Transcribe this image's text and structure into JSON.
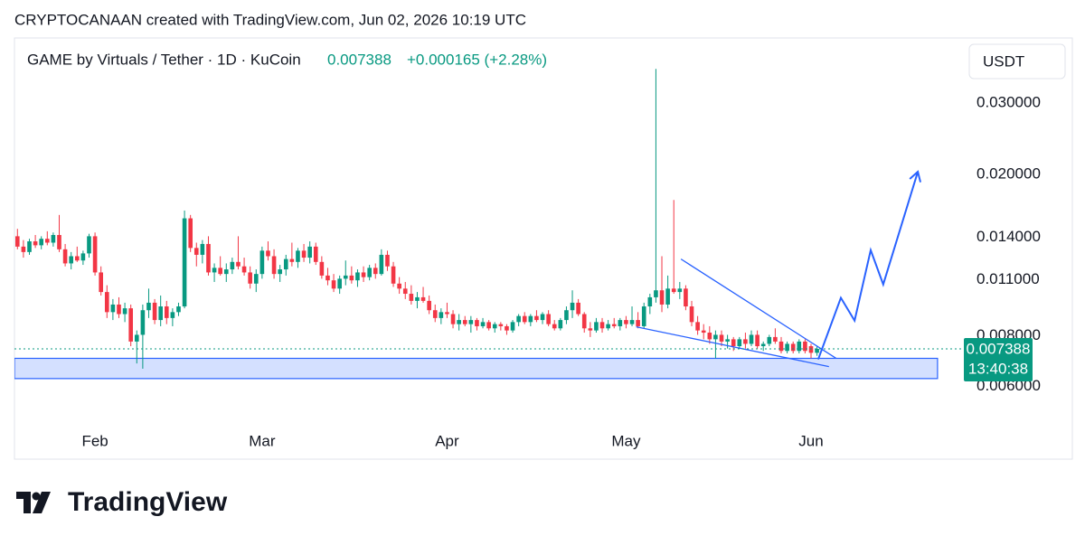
{
  "header": "CRYPTOCANAAN created with TradingView.com, Jun 02, 2026 10:19 UTC",
  "chart_data": {
    "type": "candlestick",
    "title": "GAME by Virtuals / Tether · 1D · KuCoin",
    "change": "+0.000165 (+2.28%)",
    "currency": "USDT",
    "last_price": 0.007388,
    "countdown": "13:40:38",
    "log_scale": true,
    "up_color": "#089981",
    "down_color": "#f23645",
    "drawing_color": "#2962ff",
    "xlim": [
      -0.5,
      157.7
    ],
    "ylim": [
      0.0048,
      0.0425
    ],
    "xticks": [
      {
        "value": 13,
        "label": "Feb"
      },
      {
        "value": 41,
        "label": "Mar"
      },
      {
        "value": 72,
        "label": "Apr"
      },
      {
        "value": 102,
        "label": "May"
      },
      {
        "value": 133,
        "label": "Jun"
      }
    ],
    "yticks": [
      {
        "value": 0.006,
        "label": "0.006000"
      },
      {
        "value": 0.008,
        "label": "0.008000"
      },
      {
        "value": 0.011,
        "label": "0.011000"
      },
      {
        "value": 0.014,
        "label": "0.014000"
      },
      {
        "value": 0.02,
        "label": "0.020000"
      },
      {
        "value": 0.03,
        "label": "0.030000"
      }
    ],
    "ohlc": [
      [
        0.014,
        0.0146,
        0.013,
        0.0132
      ],
      [
        0.0132,
        0.0137,
        0.0124,
        0.0128
      ],
      [
        0.0128,
        0.0138,
        0.0126,
        0.0136
      ],
      [
        0.0136,
        0.0141,
        0.0131,
        0.0133
      ],
      [
        0.0133,
        0.014,
        0.013,
        0.0138
      ],
      [
        0.0138,
        0.0144,
        0.0133,
        0.0135
      ],
      [
        0.0135,
        0.0143,
        0.0132,
        0.0141
      ],
      [
        0.0141,
        0.0158,
        0.0128,
        0.013
      ],
      [
        0.013,
        0.0134,
        0.0118,
        0.012
      ],
      [
        0.012,
        0.0128,
        0.0116,
        0.0125
      ],
      [
        0.0125,
        0.0132,
        0.0121,
        0.0122
      ],
      [
        0.0122,
        0.0129,
        0.0119,
        0.0127
      ],
      [
        0.0127,
        0.0142,
        0.0124,
        0.014
      ],
      [
        0.014,
        0.0143,
        0.0112,
        0.0114
      ],
      [
        0.0114,
        0.0118,
        0.01,
        0.0102
      ],
      [
        0.0102,
        0.0106,
        0.0088,
        0.0091
      ],
      [
        0.0091,
        0.0098,
        0.0087,
        0.0095
      ],
      [
        0.0095,
        0.0099,
        0.0088,
        0.009
      ],
      [
        0.009,
        0.0096,
        0.0086,
        0.0093
      ],
      [
        0.0093,
        0.0095,
        0.0075,
        0.0077
      ],
      [
        0.0077,
        0.0082,
        0.0068,
        0.008
      ],
      [
        0.008,
        0.0095,
        0.0066,
        0.0092
      ],
      [
        0.0092,
        0.0104,
        0.0088,
        0.0096
      ],
      [
        0.0096,
        0.0098,
        0.0085,
        0.0087
      ],
      [
        0.0087,
        0.01,
        0.0084,
        0.0094
      ],
      [
        0.0094,
        0.0097,
        0.0085,
        0.0088
      ],
      [
        0.0088,
        0.0093,
        0.0084,
        0.0091
      ],
      [
        0.0091,
        0.0096,
        0.0089,
        0.0094
      ],
      [
        0.0094,
        0.0162,
        0.0093,
        0.0155
      ],
      [
        0.0155,
        0.0158,
        0.0128,
        0.0131
      ],
      [
        0.0131,
        0.0135,
        0.0118,
        0.0126
      ],
      [
        0.0126,
        0.0137,
        0.012,
        0.0134
      ],
      [
        0.0134,
        0.014,
        0.0112,
        0.0114
      ],
      [
        0.0114,
        0.012,
        0.0108,
        0.0117
      ],
      [
        0.0117,
        0.0125,
        0.0112,
        0.0113
      ],
      [
        0.0113,
        0.012,
        0.0108,
        0.0116
      ],
      [
        0.0116,
        0.0124,
        0.0113,
        0.0121
      ],
      [
        0.0121,
        0.014,
        0.0116,
        0.0118
      ],
      [
        0.0118,
        0.0124,
        0.0112,
        0.0114
      ],
      [
        0.0114,
        0.0118,
        0.0104,
        0.0107
      ],
      [
        0.0107,
        0.0116,
        0.0102,
        0.0113
      ],
      [
        0.0113,
        0.0132,
        0.011,
        0.0129
      ],
      [
        0.0129,
        0.0136,
        0.0122,
        0.0125
      ],
      [
        0.0125,
        0.013,
        0.011,
        0.0113
      ],
      [
        0.0113,
        0.0119,
        0.0108,
        0.0116
      ],
      [
        0.0116,
        0.0126,
        0.0112,
        0.0123
      ],
      [
        0.0123,
        0.0135,
        0.0118,
        0.0121
      ],
      [
        0.0121,
        0.0131,
        0.0117,
        0.0129
      ],
      [
        0.0129,
        0.0134,
        0.0121,
        0.0124
      ],
      [
        0.0124,
        0.0136,
        0.012,
        0.0132
      ],
      [
        0.0132,
        0.0135,
        0.0119,
        0.0121
      ],
      [
        0.0121,
        0.0125,
        0.011,
        0.0112
      ],
      [
        0.0112,
        0.0117,
        0.0106,
        0.0109
      ],
      [
        0.0109,
        0.0113,
        0.0102,
        0.0104
      ],
      [
        0.0104,
        0.0112,
        0.0101,
        0.011
      ],
      [
        0.011,
        0.0122,
        0.0106,
        0.0112
      ],
      [
        0.0112,
        0.0118,
        0.0107,
        0.0109
      ],
      [
        0.0109,
        0.0116,
        0.0105,
        0.0114
      ],
      [
        0.0114,
        0.0118,
        0.0108,
        0.0111
      ],
      [
        0.0111,
        0.0119,
        0.0109,
        0.0117
      ],
      [
        0.0117,
        0.012,
        0.011,
        0.0113
      ],
      [
        0.0113,
        0.013,
        0.0112,
        0.0126
      ],
      [
        0.0126,
        0.0129,
        0.0115,
        0.0118
      ],
      [
        0.0118,
        0.0121,
        0.0105,
        0.0107
      ],
      [
        0.0107,
        0.0111,
        0.0101,
        0.0104
      ],
      [
        0.0104,
        0.0108,
        0.0098,
        0.0101
      ],
      [
        0.0101,
        0.0106,
        0.0095,
        0.0097
      ],
      [
        0.0097,
        0.0102,
        0.0093,
        0.0099
      ],
      [
        0.0099,
        0.0105,
        0.0096,
        0.0097
      ],
      [
        0.0097,
        0.01,
        0.009,
        0.0092
      ],
      [
        0.0092,
        0.0095,
        0.0086,
        0.0088
      ],
      [
        0.0088,
        0.0093,
        0.0085,
        0.0091
      ],
      [
        0.0091,
        0.0096,
        0.0088,
        0.009
      ],
      [
        0.009,
        0.0092,
        0.0083,
        0.0085
      ],
      [
        0.0085,
        0.009,
        0.0082,
        0.0087
      ],
      [
        0.0087,
        0.0089,
        0.0084,
        0.0085
      ],
      [
        0.0085,
        0.0089,
        0.0081,
        0.0087
      ],
      [
        0.0087,
        0.0088,
        0.0082,
        0.0084
      ],
      [
        0.0084,
        0.0088,
        0.0083,
        0.0086
      ],
      [
        0.0086,
        0.0087,
        0.0082,
        0.0083
      ],
      [
        0.0083,
        0.0086,
        0.0081,
        0.0085
      ],
      [
        0.0085,
        0.0086,
        0.0082,
        0.0084
      ],
      [
        0.0084,
        0.0085,
        0.008,
        0.0082
      ],
      [
        0.0082,
        0.0087,
        0.0081,
        0.0086
      ],
      [
        0.0086,
        0.009,
        0.0084,
        0.0089
      ],
      [
        0.0089,
        0.0091,
        0.0085,
        0.0086
      ],
      [
        0.0086,
        0.009,
        0.0084,
        0.0089
      ],
      [
        0.0089,
        0.0092,
        0.0086,
        0.0087
      ],
      [
        0.0087,
        0.0091,
        0.0085,
        0.009
      ],
      [
        0.009,
        0.0092,
        0.0084,
        0.0085
      ],
      [
        0.0085,
        0.0087,
        0.0082,
        0.0083
      ],
      [
        0.0083,
        0.0088,
        0.0082,
        0.0087
      ],
      [
        0.0087,
        0.0094,
        0.0085,
        0.0092
      ],
      [
        0.0092,
        0.0103,
        0.0088,
        0.0096
      ],
      [
        0.0096,
        0.0098,
        0.0089,
        0.009
      ],
      [
        0.009,
        0.0091,
        0.0081,
        0.0083
      ],
      [
        0.0083,
        0.0086,
        0.0079,
        0.0082
      ],
      [
        0.0082,
        0.0088,
        0.0081,
        0.0086
      ],
      [
        0.0086,
        0.0088,
        0.0081,
        0.0083
      ],
      [
        0.0083,
        0.0087,
        0.0082,
        0.0085
      ],
      [
        0.0085,
        0.0088,
        0.0083,
        0.0084
      ],
      [
        0.0084,
        0.0088,
        0.0082,
        0.0087
      ],
      [
        0.0087,
        0.0089,
        0.0083,
        0.0085
      ],
      [
        0.0085,
        0.0094,
        0.0084,
        0.0087
      ],
      [
        0.0087,
        0.0091,
        0.0083,
        0.0084
      ],
      [
        0.0084,
        0.0096,
        0.0083,
        0.0094
      ],
      [
        0.0094,
        0.0101,
        0.009,
        0.0099
      ],
      [
        0.0099,
        0.0362,
        0.0096,
        0.0103
      ],
      [
        0.0103,
        0.0125,
        0.0091,
        0.0095
      ],
      [
        0.0095,
        0.0112,
        0.0093,
        0.0104
      ],
      [
        0.0104,
        0.0172,
        0.0101,
        0.0102
      ],
      [
        0.0102,
        0.0108,
        0.0098,
        0.0104
      ],
      [
        0.0104,
        0.0106,
        0.0092,
        0.0094
      ],
      [
        0.0094,
        0.0097,
        0.0084,
        0.0086
      ],
      [
        0.0086,
        0.0089,
        0.008,
        0.0082
      ],
      [
        0.0082,
        0.0085,
        0.0078,
        0.0081
      ],
      [
        0.0081,
        0.0084,
        0.0076,
        0.0078
      ],
      [
        0.0078,
        0.0082,
        0.007,
        0.008
      ],
      [
        0.008,
        0.0082,
        0.0075,
        0.0077
      ],
      [
        0.0077,
        0.008,
        0.0074,
        0.0078
      ],
      [
        0.0078,
        0.0079,
        0.0073,
        0.0075
      ],
      [
        0.0075,
        0.0079,
        0.0074,
        0.0078
      ],
      [
        0.0078,
        0.0081,
        0.0074,
        0.0076
      ],
      [
        0.0076,
        0.0082,
        0.0075,
        0.008
      ],
      [
        0.008,
        0.0082,
        0.0074,
        0.0075
      ],
      [
        0.0075,
        0.0077,
        0.0073,
        0.0076
      ],
      [
        0.0076,
        0.008,
        0.0075,
        0.0079
      ],
      [
        0.0079,
        0.0083,
        0.0076,
        0.0077
      ],
      [
        0.0077,
        0.0079,
        0.0072,
        0.0073
      ],
      [
        0.0073,
        0.0077,
        0.0072,
        0.0076
      ],
      [
        0.0076,
        0.0077,
        0.0072,
        0.0073
      ],
      [
        0.0073,
        0.0078,
        0.0072,
        0.0077
      ],
      [
        0.0077,
        0.0078,
        0.0072,
        0.0073
      ],
      [
        0.0075,
        0.0076,
        0.007,
        0.007223
      ],
      [
        0.007223,
        0.0075,
        0.0071,
        0.007388
      ]
    ],
    "zone": {
      "x": [
        -0.5,
        154.2
      ],
      "y": [
        0.00624,
        0.007
      ]
    },
    "wedge": [
      {
        "x": [
          111.2,
          137.2
        ],
        "y": [
          0.0123,
          0.007
        ]
      },
      {
        "x": [
          103.7,
          136
        ],
        "y": [
          0.00837,
          0.00668
        ]
      }
    ],
    "projection": {
      "x": [
        134.2,
        138,
        140.3,
        143,
        145.1,
        150.9
      ],
      "y": [
        0.00696,
        0.00987,
        0.00867,
        0.01294,
        0.01065,
        0.0202
      ]
    }
  },
  "logo": "TradingView"
}
